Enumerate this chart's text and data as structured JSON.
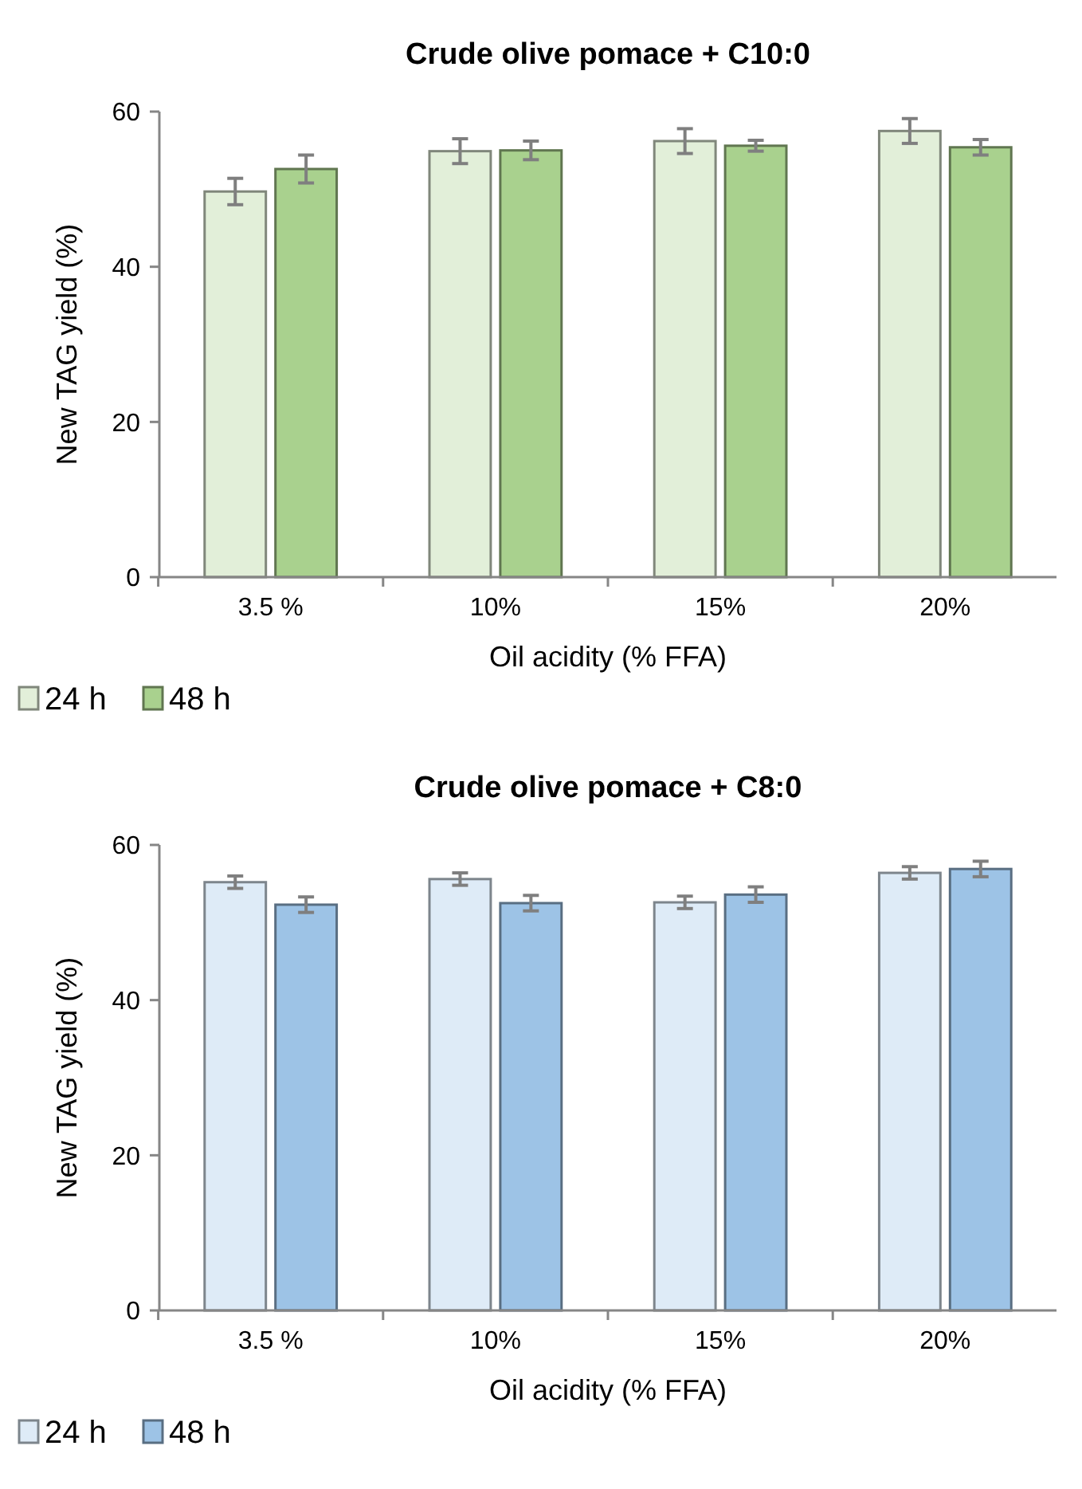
{
  "chart_data": [
    {
      "type": "bar",
      "title": "Crude olive pomace + C10:0",
      "xlabel": "Oil acidity (% FFA)",
      "ylabel": "New TAG yield (%)",
      "categories": [
        "3.5 %",
        "10%",
        "15%",
        "20%"
      ],
      "series": [
        {
          "name": "24 h",
          "color": "#e2efd9",
          "values": [
            49.7,
            54.9,
            56.2,
            57.5
          ],
          "errors": [
            1.7,
            1.6,
            1.6,
            1.6
          ]
        },
        {
          "name": "48 h",
          "color": "#a9d18e",
          "values": [
            52.6,
            55.0,
            55.6,
            55.4
          ],
          "errors": [
            1.8,
            1.2,
            0.7,
            1.0
          ]
        }
      ],
      "ylim": [
        0,
        60
      ],
      "yticks": [
        0,
        20,
        40,
        60
      ],
      "grid": false,
      "legend": "bottom left"
    },
    {
      "type": "bar",
      "title": "Crude olive pomace + C8:0",
      "xlabel": "Oil acidity (% FFA)",
      "ylabel": "New TAG yield (%)",
      "categories": [
        "3.5 %",
        "10%",
        "15%",
        "20%"
      ],
      "series": [
        {
          "name": "24 h",
          "color": "#deebf7",
          "values": [
            55.2,
            55.6,
            52.6,
            56.4
          ],
          "errors": [
            0.8,
            0.8,
            0.8,
            0.8
          ]
        },
        {
          "name": "48 h",
          "color": "#9dc3e6",
          "values": [
            52.3,
            52.5,
            53.6,
            56.9
          ],
          "errors": [
            1.0,
            1.0,
            1.0,
            1.0
          ]
        }
      ],
      "ylim": [
        0,
        60
      ],
      "yticks": [
        0,
        20,
        40,
        60
      ],
      "grid": false,
      "legend": "bottom left"
    }
  ]
}
